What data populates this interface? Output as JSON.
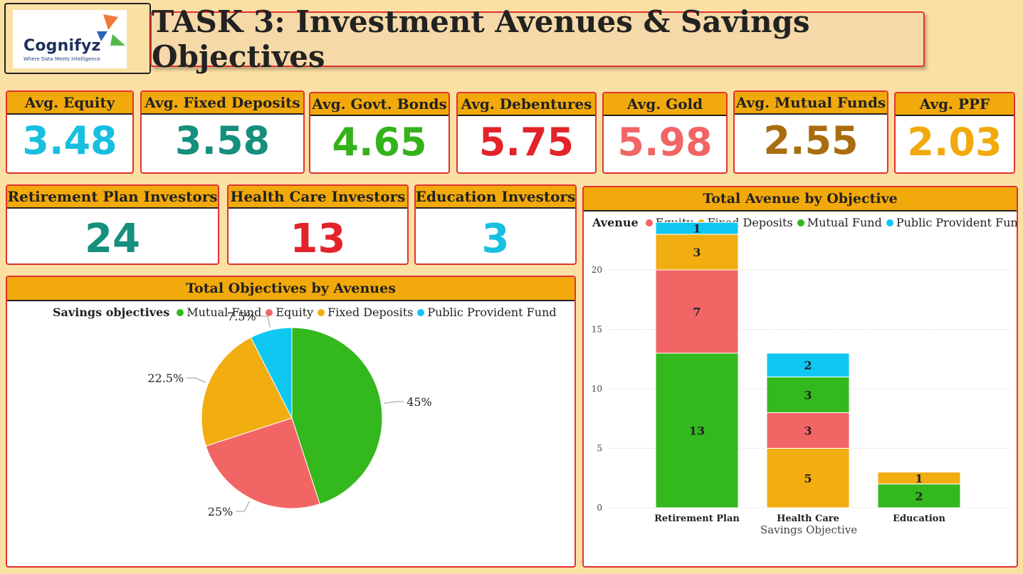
{
  "logo": {
    "name": "Cognifyz",
    "tagline": "Where Data Meets Intelligence"
  },
  "title": "TASK 3: Investment Avenues & Savings Objectives",
  "kpis": [
    {
      "label": "Avg. Equity",
      "value": "3.48",
      "color": "#17bfe0"
    },
    {
      "label": "Avg. Fixed Deposits",
      "value": "3.58",
      "color": "#158f7e"
    },
    {
      "label": "Avg. Govt. Bonds",
      "value": "4.65",
      "color": "#34b21a"
    },
    {
      "label": "Avg. Debentures",
      "value": "5.75",
      "color": "#e3222a"
    },
    {
      "label": "Avg. Gold",
      "value": "5.98",
      "color": "#f26565"
    },
    {
      "label": "Avg. Mutual Funds",
      "value": "2.55",
      "color": "#a96d10"
    },
    {
      "label": "Avg. PPF",
      "value": "2.03",
      "color": "#f2a90b"
    }
  ],
  "investors": [
    {
      "label": "Retirement Plan Investors",
      "value": "24",
      "color": "#158f7e"
    },
    {
      "label": "Health Care Investors",
      "value": "13",
      "color": "#e3222a"
    },
    {
      "label": "Education Investors",
      "value": "3",
      "color": "#17bfe0"
    }
  ],
  "pie_panel": {
    "title": "Total Objectives by Avenues",
    "legend_title": "Savings objectives"
  },
  "bar_panel": {
    "title": "Total Avenue by Objective",
    "legend_title": "Avenue"
  },
  "chart_data": [
    {
      "type": "pie",
      "title": "Total Objectives by Avenues",
      "legend_title": "Savings objectives",
      "slices": [
        {
          "name": "Mutual Fund",
          "value": 45,
          "label": "45%",
          "color": "#33b81d"
        },
        {
          "name": "Equity",
          "value": 25,
          "label": "25%",
          "color": "#f26565"
        },
        {
          "name": "Fixed Deposits",
          "value": 22.5,
          "label": "22.5%",
          "color": "#f2ad11"
        },
        {
          "name": "Public Provident Fund",
          "value": 7.5,
          "label": "7.5%",
          "color": "#10c7f2"
        }
      ],
      "legend_order": [
        "Mutual Fund",
        "Equity",
        "Fixed Deposits",
        "Public Provident Fund"
      ]
    },
    {
      "type": "bar",
      "stacked": true,
      "title": "Total Avenue by Objective",
      "legend_title": "Avenue",
      "xlabel": "Savings Objective",
      "categories": [
        "Retirement Plan",
        "Health Care",
        "Education"
      ],
      "ylim": [
        0,
        24
      ],
      "yticks": [
        0,
        5,
        10,
        15,
        20
      ],
      "grid": true,
      "legend_position": "top-left",
      "series": [
        {
          "name": "Equity",
          "values": [
            7,
            3,
            0
          ],
          "color": "#f26565"
        },
        {
          "name": "Fixed Deposits",
          "values": [
            3,
            5,
            1
          ],
          "color": "#f2ad11"
        },
        {
          "name": "Mutual Fund",
          "values": [
            13,
            3,
            2
          ],
          "color": "#33b81d"
        },
        {
          "name": "Public Provident Fund",
          "values": [
            1,
            2,
            0
          ],
          "color": "#10c7f2"
        }
      ],
      "stack_order": [
        "Mutual Fund",
        "Equity",
        "Fixed Deposits",
        "Public Provident Fund"
      ],
      "stack_order_by_category": [
        [
          "Mutual Fund",
          "Equity",
          "Fixed Deposits",
          "Public Provident Fund"
        ],
        [
          "Fixed Deposits",
          "Equity",
          "Mutual Fund",
          "Public Provident Fund"
        ],
        [
          "Mutual Fund",
          "Fixed Deposits"
        ]
      ]
    }
  ]
}
